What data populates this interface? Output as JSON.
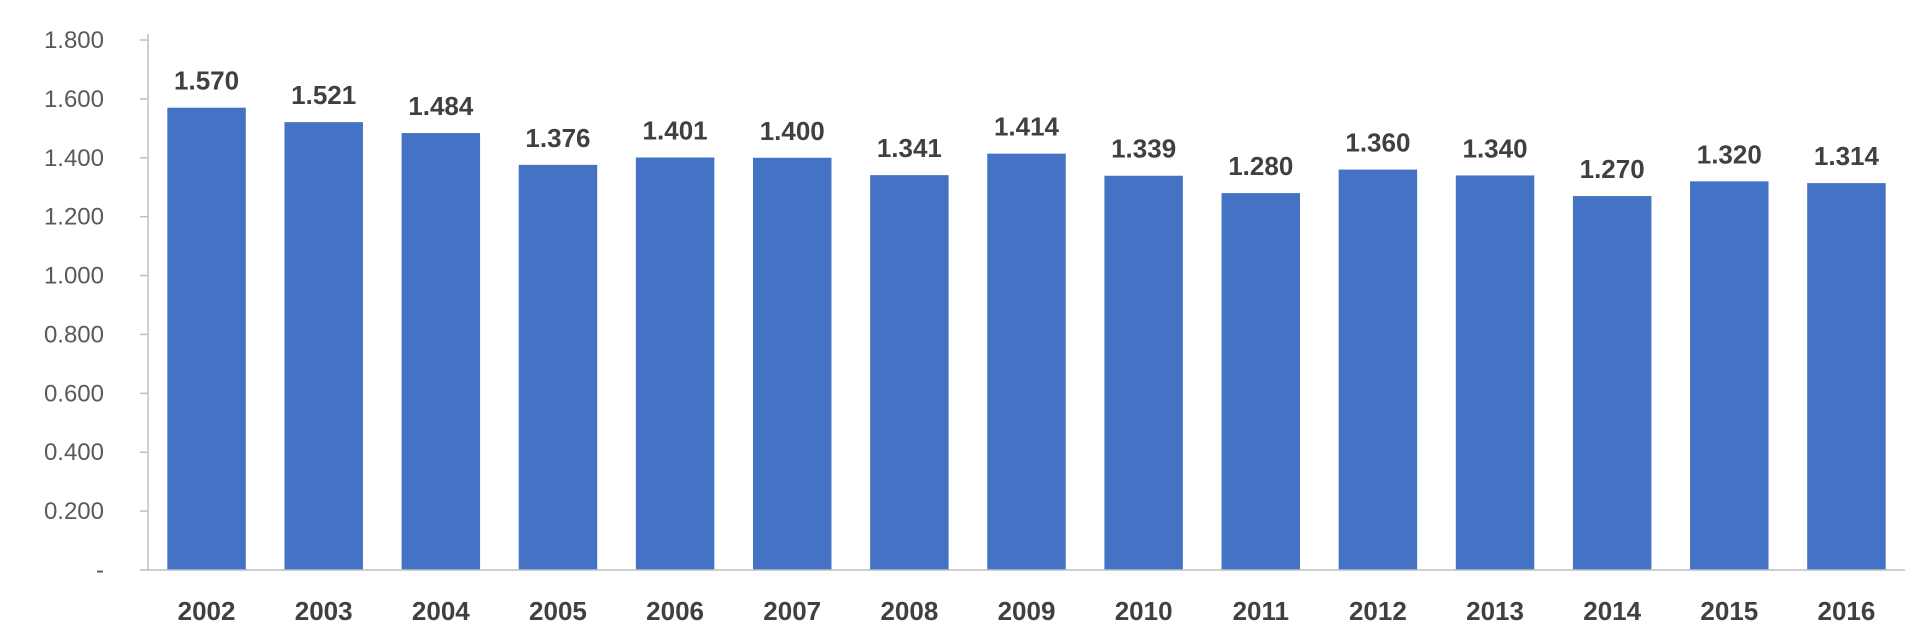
{
  "chart_data": {
    "type": "bar",
    "title": "",
    "xlabel": "",
    "ylabel": "",
    "categories": [
      "2002",
      "2003",
      "2004",
      "2005",
      "2006",
      "2007",
      "2008",
      "2009",
      "2010",
      "2011",
      "2012",
      "2013",
      "2014",
      "2015",
      "2016"
    ],
    "values": [
      1.57,
      1.521,
      1.484,
      1.376,
      1.401,
      1.4,
      1.341,
      1.414,
      1.339,
      1.28,
      1.36,
      1.34,
      1.27,
      1.32,
      1.314
    ],
    "value_labels": [
      "1.570",
      "1.521",
      "1.484",
      "1.376",
      "1.401",
      "1.400",
      "1.341",
      "1.414",
      "1.339",
      "1.280",
      "1.360",
      "1.340",
      "1.270",
      "1.320",
      "1.314"
    ],
    "ylim": [
      0,
      1.8
    ],
    "yticks": [
      0,
      0.2,
      0.4,
      0.6,
      0.8,
      1.0,
      1.2,
      1.4,
      1.6,
      1.8
    ],
    "ytick_labels": [
      "-",
      "0.200",
      "0.400",
      "0.600",
      "0.800",
      "1.000",
      "1.200",
      "1.400",
      "1.600",
      "1.800"
    ],
    "grid": false,
    "legend": "none",
    "bar_color": "#4472C4",
    "axis_color": "#BFBFBF",
    "label_color": "#404040",
    "tick_color": "#595959"
  }
}
